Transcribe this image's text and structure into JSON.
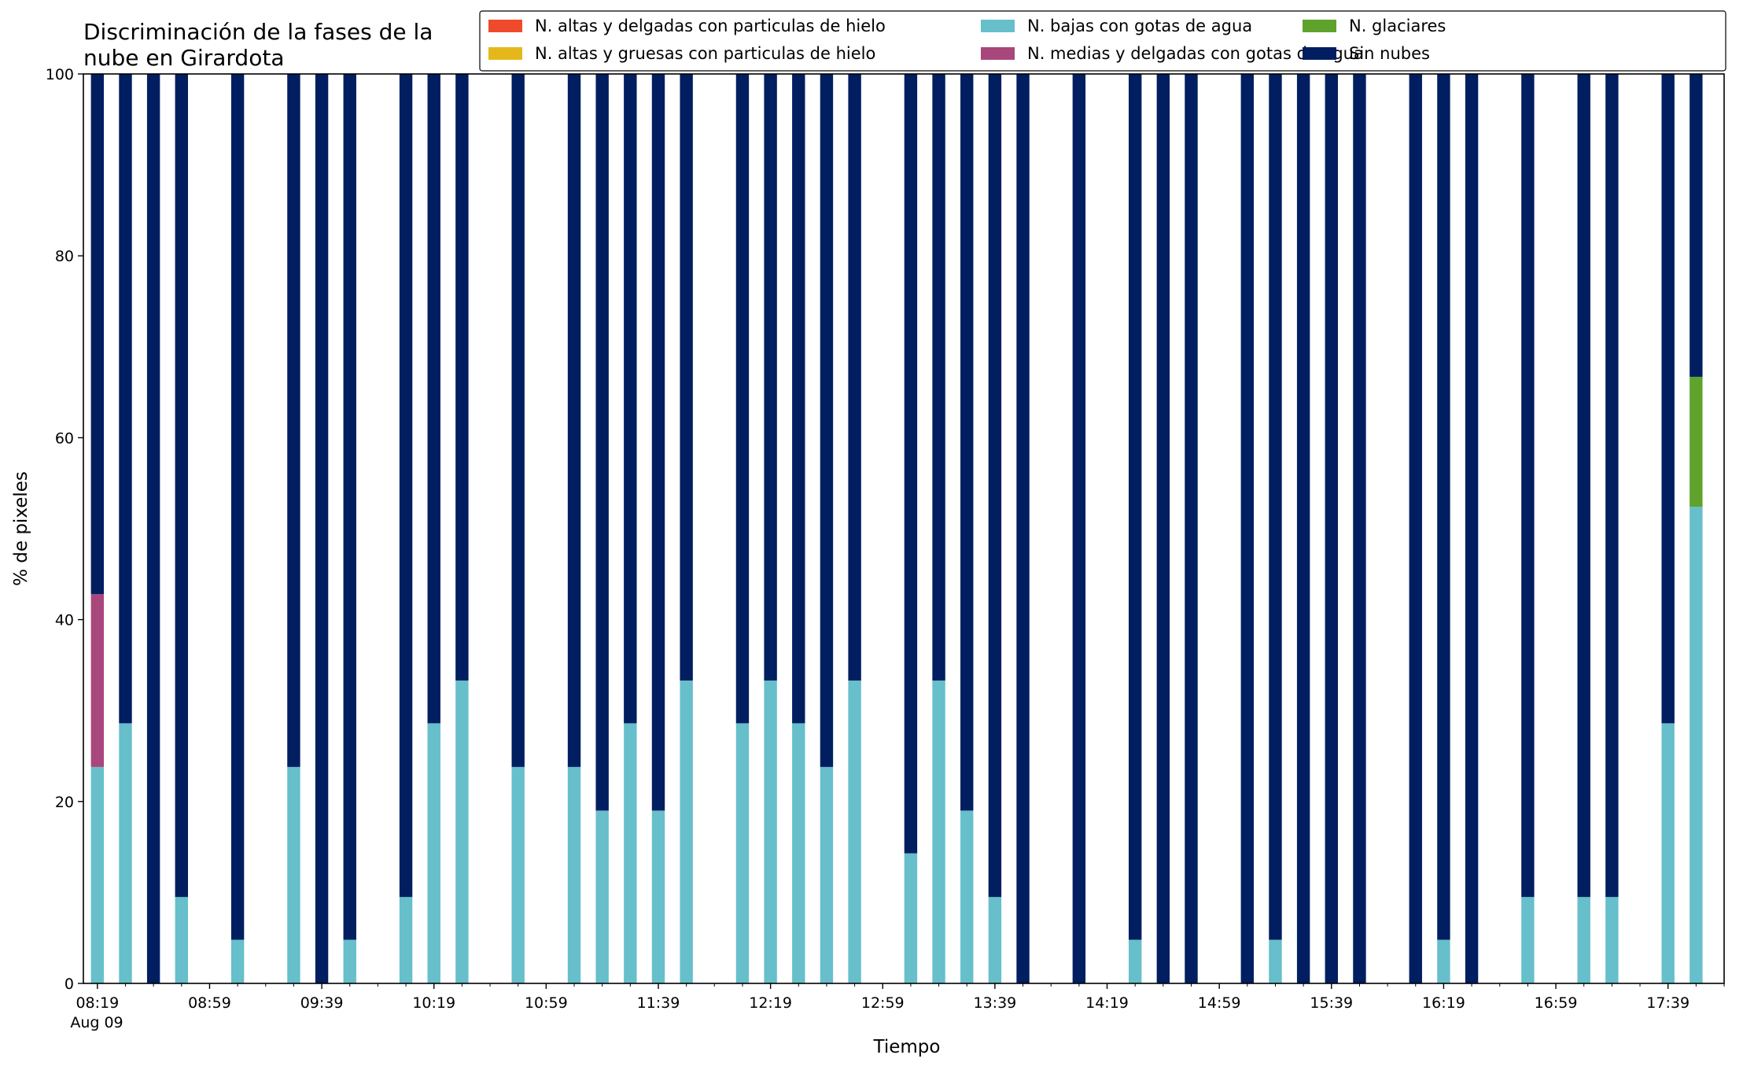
{
  "chart_data": {
    "type": "bar",
    "stacked": true,
    "title_lines": [
      "Discriminación de la fases de la",
      "nube en Girardota"
    ],
    "xlabel": "Tiempo",
    "ylabel": "% de pixeles",
    "ylim": [
      0,
      100
    ],
    "yticks": [
      0,
      20,
      40,
      60,
      80,
      100
    ],
    "xlim": [
      "08:14",
      "17:59"
    ],
    "x_major_ticks": [
      "08:19",
      "08:59",
      "09:39",
      "10:19",
      "10:59",
      "11:39",
      "12:19",
      "12:59",
      "13:39",
      "14:19",
      "14:59",
      "15:39",
      "16:19",
      "16:59",
      "17:39"
    ],
    "x_major_tick_labels": [
      "08:19",
      "08:59",
      "09:39",
      "10:19",
      "10:59",
      "11:39",
      "12:19",
      "12:59",
      "13:39",
      "14:19",
      "14:59",
      "15:39",
      "16:19",
      "16:59",
      "17:39"
    ],
    "x_date_label": "Aug 09",
    "x_minor_tick_step_minutes": 10,
    "grid": false,
    "legend_position": "top-right",
    "legend_columns": 3,
    "x": [
      "08:19",
      "08:29",
      "08:39",
      "08:49",
      "09:09",
      "09:29",
      "09:39",
      "09:49",
      "10:09",
      "10:19",
      "10:29",
      "10:49",
      "11:09",
      "11:19",
      "11:29",
      "11:39",
      "11:49",
      "12:09",
      "12:19",
      "12:29",
      "12:39",
      "12:49",
      "13:09",
      "13:19",
      "13:29",
      "13:39",
      "13:49",
      "14:09",
      "14:29",
      "14:39",
      "14:49",
      "15:09",
      "15:19",
      "15:29",
      "15:39",
      "15:49",
      "16:09",
      "16:19",
      "16:29",
      "16:49",
      "17:09",
      "17:19",
      "17:39",
      "17:49"
    ],
    "series": [
      {
        "name": "N. altas y delgadas con particulas de hielo",
        "color": "#ef4a2b",
        "values": [
          0,
          0,
          0,
          0,
          0,
          0,
          0,
          0,
          0,
          0,
          0,
          0,
          0,
          0,
          0,
          0,
          0,
          0,
          0,
          0,
          0,
          0,
          0,
          0,
          0,
          0,
          0,
          0,
          0,
          0,
          0,
          0,
          0,
          0,
          0,
          0,
          0,
          0,
          0,
          0,
          0,
          0,
          0,
          0
        ]
      },
      {
        "name": "N. altas y gruesas con particulas de hielo",
        "color": "#e4b81a",
        "values": [
          0,
          0,
          0,
          0,
          0,
          0,
          0,
          0,
          0,
          0,
          0,
          0,
          0,
          0,
          0,
          0,
          0,
          0,
          0,
          0,
          0,
          0,
          0,
          0,
          0,
          0,
          0,
          0,
          0,
          0,
          0,
          0,
          0,
          0,
          0,
          0,
          0,
          0,
          0,
          0,
          0,
          0,
          0,
          0
        ]
      },
      {
        "name": "N. bajas con gotas de agua",
        "color": "#66bfcb",
        "values": [
          23.8,
          28.6,
          0,
          9.5,
          4.8,
          23.8,
          0,
          4.8,
          9.5,
          28.6,
          33.3,
          23.8,
          23.8,
          19.0,
          28.6,
          19.0,
          33.3,
          28.6,
          33.3,
          28.6,
          23.8,
          33.3,
          14.3,
          33.3,
          19.0,
          9.5,
          0,
          0,
          4.8,
          0,
          0,
          0,
          4.8,
          0,
          0,
          0,
          0,
          4.8,
          0,
          9.5,
          9.5,
          9.5,
          28.6,
          52.4
        ]
      },
      {
        "name": "N. medias y delgadas con gotas de agua",
        "color": "#a9467c",
        "values": [
          19.0,
          0,
          0,
          0,
          0,
          0,
          0,
          0,
          0,
          0,
          0,
          0,
          0,
          0,
          0,
          0,
          0,
          0,
          0,
          0,
          0,
          0,
          0,
          0,
          0,
          0,
          0,
          0,
          0,
          0,
          0,
          0,
          0,
          0,
          0,
          0,
          0,
          0,
          0,
          0,
          0,
          0,
          0,
          0
        ]
      },
      {
        "name": "N. glaciares",
        "color": "#5fa22c",
        "values": [
          0,
          0,
          0,
          0,
          0,
          0,
          0,
          0,
          0,
          0,
          0,
          0,
          0,
          0,
          0,
          0,
          0,
          0,
          0,
          0,
          0,
          0,
          0,
          0,
          0,
          0,
          0,
          0,
          0,
          0,
          0,
          0,
          0,
          0,
          0,
          0,
          0,
          0,
          0,
          0,
          0,
          0,
          0,
          14.3
        ]
      },
      {
        "name": "Sin nubes",
        "color": "#001e60",
        "values": [
          57.2,
          71.4,
          100,
          90.5,
          95.2,
          76.2,
          100,
          95.2,
          90.5,
          71.4,
          66.7,
          76.2,
          76.2,
          81.0,
          71.4,
          81.0,
          66.7,
          71.4,
          66.7,
          71.4,
          76.2,
          66.7,
          85.7,
          66.7,
          81.0,
          90.5,
          100,
          100,
          95.2,
          100,
          100,
          100,
          95.2,
          100,
          100,
          100,
          100,
          95.2,
          100,
          90.5,
          90.5,
          90.5,
          71.4,
          33.3
        ]
      }
    ]
  }
}
